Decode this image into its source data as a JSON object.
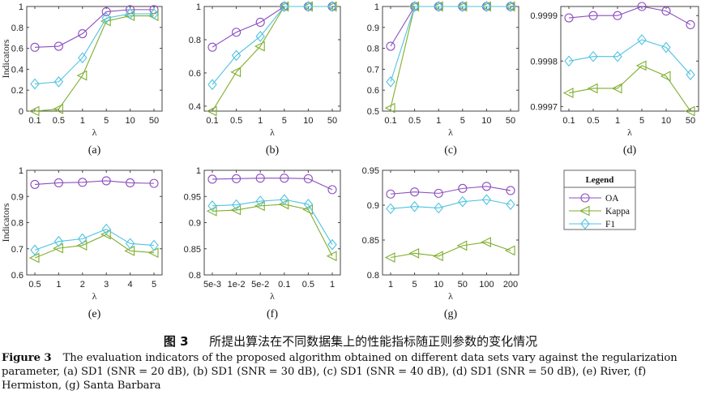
{
  "legend": {
    "title": "Legend",
    "entries": [
      {
        "name": "OA",
        "color": "#8B4FBF",
        "marker": "circle"
      },
      {
        "name": "Kappa",
        "color": "#7FAE2E",
        "marker": "triangle-left"
      },
      {
        "name": "F1",
        "color": "#4FC3E0",
        "marker": "diamond"
      }
    ]
  },
  "caption": {
    "cn_label": "图 3",
    "cn_text": "所提出算法在不同数据集上的性能指标随正则参数的变化情况",
    "en_label": "Figure 3",
    "en_text": "The evaluation indicators of the proposed algorithm obtained on different data sets vary against the regularization parameter, (a) SD1 (SNR = 20 dB), (b) SD1 (SNR = 30 dB), (c) SD1 (SNR = 40 dB), (d) SD1 (SNR = 50 dB), (e) River, (f) Hermiston, (g) Santa Barbara"
  },
  "chart_data": [
    {
      "type": "line",
      "panel": "(a)",
      "xlabel": "λ",
      "ylabel": "Indicators",
      "categories": [
        "0.1",
        "0.5",
        "1",
        "5",
        "10",
        "50"
      ],
      "ylim": [
        0,
        1
      ],
      "yticks": [
        0,
        0.2,
        0.4,
        0.6,
        0.8,
        1
      ],
      "ytick_labels": [
        "0",
        "0.2",
        "0.4",
        "0.6",
        "0.8",
        "1"
      ],
      "series": [
        {
          "name": "OA",
          "values": [
            0.61,
            0.62,
            0.74,
            0.95,
            0.97,
            0.97
          ]
        },
        {
          "name": "Kappa",
          "values": [
            0.0,
            0.02,
            0.34,
            0.86,
            0.91,
            0.91
          ]
        },
        {
          "name": "F1",
          "values": [
            0.26,
            0.28,
            0.51,
            0.89,
            0.93,
            0.93
          ]
        }
      ]
    },
    {
      "type": "line",
      "panel": "(b)",
      "xlabel": "λ",
      "ylabel": "",
      "categories": [
        "0.1",
        "0.5",
        "1",
        "5",
        "10",
        "50"
      ],
      "ylim": [
        0.37,
        1
      ],
      "yticks": [
        0.4,
        0.6,
        0.8,
        1
      ],
      "ytick_labels": [
        "0.4",
        "0.6",
        "0.8",
        "1"
      ],
      "series": [
        {
          "name": "OA",
          "values": [
            0.755,
            0.845,
            0.905,
            1.0,
            1.0,
            1.0
          ]
        },
        {
          "name": "Kappa",
          "values": [
            0.37,
            0.605,
            0.76,
            1.0,
            1.0,
            1.0
          ]
        },
        {
          "name": "F1",
          "values": [
            0.53,
            0.705,
            0.82,
            1.0,
            1.0,
            1.0
          ]
        }
      ]
    },
    {
      "type": "line",
      "panel": "(c)",
      "xlabel": "λ",
      "ylabel": "",
      "categories": [
        "0.1",
        "0.5",
        "1",
        "5",
        "10",
        "50"
      ],
      "ylim": [
        0.5,
        1
      ],
      "yticks": [
        0.5,
        0.6,
        0.7,
        0.8,
        0.9,
        1
      ],
      "ytick_labels": [
        "0.5",
        "0.6",
        "0.7",
        "0.8",
        "0.9",
        "1"
      ],
      "series": [
        {
          "name": "OA",
          "values": [
            0.81,
            1.0,
            1.0,
            1.0,
            1.0,
            1.0
          ]
        },
        {
          "name": "Kappa",
          "values": [
            0.515,
            1.0,
            1.0,
            1.0,
            1.0,
            1.0
          ]
        },
        {
          "name": "F1",
          "values": [
            0.64,
            1.0,
            1.0,
            1.0,
            1.0,
            1.0
          ]
        }
      ]
    },
    {
      "type": "line",
      "panel": "(d)",
      "xlabel": "λ",
      "ylabel": "",
      "categories": [
        "0.1",
        "0.5",
        "1",
        "5",
        "10",
        "50"
      ],
      "ylim": [
        0.99969,
        0.99992
      ],
      "yticks": [
        0.9997,
        0.9998,
        0.9999
      ],
      "ytick_labels": [
        "0.9997",
        "0.9998",
        "0.9999"
      ],
      "series": [
        {
          "name": "OA",
          "values": [
            0.999895,
            0.9999,
            0.9999,
            0.99992,
            0.99991,
            0.99988
          ]
        },
        {
          "name": "Kappa",
          "values": [
            0.99973,
            0.99974,
            0.99974,
            0.99979,
            0.999767,
            0.99969
          ]
        },
        {
          "name": "F1",
          "values": [
            0.9998,
            0.99981,
            0.99981,
            0.999847,
            0.99983,
            0.99977
          ]
        }
      ]
    },
    {
      "type": "line",
      "panel": "(e)",
      "xlabel": "λ",
      "ylabel": "Indicators",
      "categories": [
        "0.5",
        "1",
        "2",
        "3",
        "4",
        "5"
      ],
      "ylim": [
        0.6,
        1
      ],
      "yticks": [
        0.6,
        0.7,
        0.8,
        0.9,
        1
      ],
      "ytick_labels": [
        "0.6",
        "0.7",
        "0.8",
        "0.9",
        "1"
      ],
      "series": [
        {
          "name": "OA",
          "values": [
            0.946,
            0.952,
            0.954,
            0.96,
            0.952,
            0.95
          ]
        },
        {
          "name": "Kappa",
          "values": [
            0.665,
            0.702,
            0.713,
            0.755,
            0.692,
            0.685
          ]
        },
        {
          "name": "F1",
          "values": [
            0.695,
            0.728,
            0.738,
            0.775,
            0.72,
            0.713
          ]
        }
      ]
    },
    {
      "type": "line",
      "panel": "(f)",
      "xlabel": "λ",
      "ylabel": "",
      "categories": [
        "5e-3",
        "1e-2",
        "5e-2",
        "0.1",
        "0.5",
        "1"
      ],
      "ylim": [
        0.8,
        1
      ],
      "yticks": [
        0.8,
        0.85,
        0.9,
        0.95,
        1
      ],
      "ytick_labels": [
        "0.8",
        "0.85",
        "0.9",
        "0.95",
        "1"
      ],
      "series": [
        {
          "name": "OA",
          "values": [
            0.983,
            0.984,
            0.985,
            0.985,
            0.984,
            0.963
          ]
        },
        {
          "name": "Kappa",
          "values": [
            0.922,
            0.924,
            0.932,
            0.935,
            0.925,
            0.836
          ]
        },
        {
          "name": "F1",
          "values": [
            0.932,
            0.934,
            0.941,
            0.944,
            0.935,
            0.858
          ]
        }
      ]
    },
    {
      "type": "line",
      "panel": "(g)",
      "xlabel": "λ",
      "ylabel": "",
      "categories": [
        "1",
        "5",
        "10",
        "50",
        "100",
        "200"
      ],
      "ylim": [
        0.8,
        0.95
      ],
      "yticks": [
        0.8,
        0.85,
        0.9,
        0.95
      ],
      "ytick_labels": [
        "0.8",
        "0.85",
        "0.9",
        "0.95"
      ],
      "series": [
        {
          "name": "OA",
          "values": [
            0.916,
            0.919,
            0.917,
            0.924,
            0.927,
            0.921
          ]
        },
        {
          "name": "Kappa",
          "values": [
            0.825,
            0.831,
            0.827,
            0.842,
            0.847,
            0.835
          ]
        },
        {
          "name": "F1",
          "values": [
            0.895,
            0.898,
            0.896,
            0.905,
            0.908,
            0.901
          ]
        }
      ]
    }
  ]
}
